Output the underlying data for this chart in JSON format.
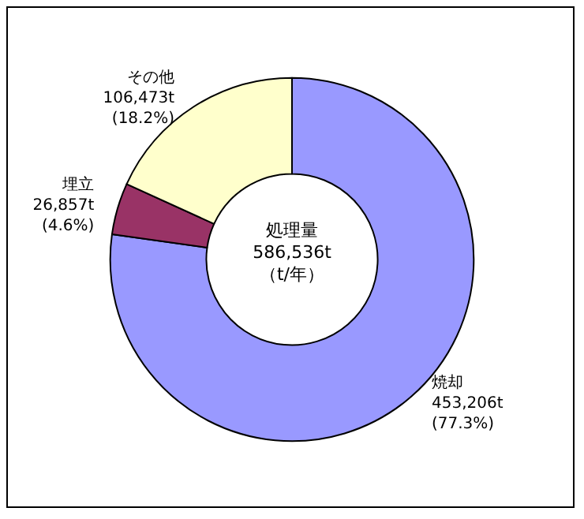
{
  "chart_data": {
    "type": "donut",
    "categories": [
      "焼却",
      "埋立",
      "その他"
    ],
    "values": [
      77.3,
      4.6,
      18.2
    ],
    "colors": [
      "#9999ff",
      "#993366",
      "#ffffcc"
    ],
    "value_labels": [
      "453,206t\n(77.3%)",
      "26,857t\n(4.6%)",
      "106,473t\n(18.2%)"
    ],
    "annotations": [
      "処理量",
      "586,536t",
      "（t/年）"
    ],
    "legend": false
  }
}
